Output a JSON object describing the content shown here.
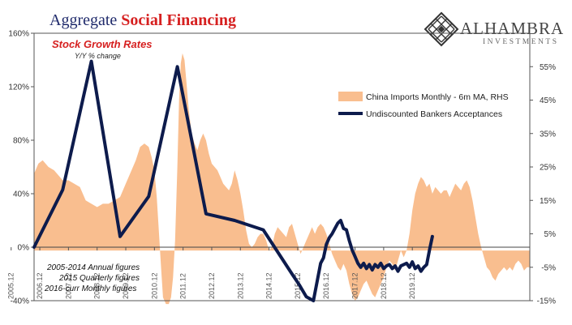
{
  "header": {
    "title_plain": "Aggregate",
    "title_accent": "Social Financing"
  },
  "logo": {
    "name": "ALHAMBRA",
    "sub": "INVESTMENTS",
    "icon": "diamond-lattice-icon"
  },
  "chart_data": {
    "type": "line",
    "subtitle": "Stock Growth Rates",
    "subnote": "Y/Y % change",
    "x_tick_labels": [
      "2005.12",
      "2006.12",
      "2007.12",
      "2008.12",
      "2009.12",
      "2010.12",
      "2011.12",
      "2012.12",
      "2013.12",
      "2014.12",
      "2015.12",
      "2016.12",
      "2017.12",
      "2018.12",
      "2019.12"
    ],
    "y_left": {
      "ticks": [
        "-40%",
        "0%",
        "40%",
        "80%",
        "120%",
        "160%"
      ],
      "range": [
        -40,
        160
      ]
    },
    "y_right": {
      "ticks": [
        "-15%",
        "-5%",
        "5%",
        "15%",
        "25%",
        "35%",
        "45%",
        "55%"
      ],
      "range": [
        -15,
        65
      ]
    },
    "legend_position": "right",
    "notes": [
      "2005-2014 Annual figures",
      "2015 Quarterly figures",
      "2016-curr Monthly figures"
    ],
    "colors": {
      "area": "#f9be8f",
      "line": "#0d1b4c"
    },
    "series": [
      {
        "name": "China Imports Monthly - 6m MA, RHS",
        "kind": "area",
        "axis": "right",
        "points": [
          [
            2006.0,
            23
          ],
          [
            2006.15,
            26
          ],
          [
            2006.3,
            27
          ],
          [
            2006.5,
            25
          ],
          [
            2006.7,
            24
          ],
          [
            2006.9,
            22
          ],
          [
            2007.0,
            21
          ],
          [
            2007.2,
            21
          ],
          [
            2007.4,
            20
          ],
          [
            2007.6,
            19
          ],
          [
            2007.8,
            15
          ],
          [
            2008.0,
            14
          ],
          [
            2008.2,
            13
          ],
          [
            2008.4,
            14
          ],
          [
            2008.6,
            14
          ],
          [
            2008.8,
            15
          ],
          [
            2009.0,
            16
          ],
          [
            2009.2,
            20
          ],
          [
            2009.4,
            24
          ],
          [
            2009.55,
            27
          ],
          [
            2009.7,
            31
          ],
          [
            2009.85,
            32
          ],
          [
            2010.0,
            31
          ],
          [
            2010.1,
            28
          ],
          [
            2010.2,
            24
          ],
          [
            2010.28,
            16
          ],
          [
            2010.36,
            5
          ],
          [
            2010.43,
            -5
          ],
          [
            2010.5,
            -14
          ],
          [
            2010.6,
            -16
          ],
          [
            2010.7,
            -16
          ],
          [
            2010.78,
            -14
          ],
          [
            2010.85,
            -8
          ],
          [
            2010.92,
            3
          ],
          [
            2011.0,
            25
          ],
          [
            2011.06,
            45
          ],
          [
            2011.12,
            56
          ],
          [
            2011.18,
            59
          ],
          [
            2011.25,
            57
          ],
          [
            2011.32,
            50
          ],
          [
            2011.4,
            42
          ],
          [
            2011.5,
            35
          ],
          [
            2011.6,
            32
          ],
          [
            2011.7,
            30
          ],
          [
            2011.8,
            33
          ],
          [
            2011.9,
            35
          ],
          [
            2012.0,
            33
          ],
          [
            2012.1,
            29
          ],
          [
            2012.2,
            26
          ],
          [
            2012.3,
            25
          ],
          [
            2012.4,
            24
          ],
          [
            2012.5,
            22
          ],
          [
            2012.6,
            20
          ],
          [
            2012.7,
            19
          ],
          [
            2012.8,
            18
          ],
          [
            2012.9,
            20
          ],
          [
            2013.0,
            24
          ],
          [
            2013.1,
            21
          ],
          [
            2013.2,
            17
          ],
          [
            2013.3,
            12
          ],
          [
            2013.4,
            6
          ],
          [
            2013.5,
            2
          ],
          [
            2013.6,
            1
          ],
          [
            2013.7,
            2
          ],
          [
            2013.8,
            4
          ],
          [
            2013.9,
            5
          ],
          [
            2014.0,
            5
          ],
          [
            2014.1,
            3
          ],
          [
            2014.2,
            0
          ],
          [
            2014.3,
            1
          ],
          [
            2014.4,
            5
          ],
          [
            2014.5,
            7
          ],
          [
            2014.6,
            6
          ],
          [
            2014.7,
            5
          ],
          [
            2014.8,
            4
          ],
          [
            2014.9,
            7
          ],
          [
            2015.0,
            8
          ],
          [
            2015.1,
            5
          ],
          [
            2015.2,
            2
          ],
          [
            2015.3,
            -1
          ],
          [
            2015.4,
            1
          ],
          [
            2015.5,
            3
          ],
          [
            2015.6,
            5
          ],
          [
            2015.7,
            7
          ],
          [
            2015.8,
            5
          ],
          [
            2015.9,
            7
          ],
          [
            2016.0,
            8
          ],
          [
            2016.1,
            7
          ],
          [
            2016.2,
            5
          ],
          [
            2016.3,
            2
          ],
          [
            2016.4,
            -1
          ],
          [
            2016.5,
            -3
          ],
          [
            2016.6,
            -5
          ],
          [
            2016.7,
            -6
          ],
          [
            2016.8,
            -4
          ],
          [
            2016.9,
            -6
          ],
          [
            2017.0,
            -10
          ],
          [
            2017.1,
            -13
          ],
          [
            2017.2,
            -15
          ],
          [
            2017.3,
            -14
          ],
          [
            2017.4,
            -12
          ],
          [
            2017.5,
            -10
          ],
          [
            2017.6,
            -9
          ],
          [
            2017.7,
            -11
          ],
          [
            2017.8,
            -13
          ],
          [
            2017.9,
            -14
          ],
          [
            2018.0,
            -12
          ],
          [
            2018.1,
            -10
          ],
          [
            2018.2,
            -8
          ],
          [
            2018.3,
            -5
          ],
          [
            2018.4,
            -3
          ],
          [
            2018.5,
            -4
          ],
          [
            2018.6,
            -6
          ],
          [
            2018.7,
            -3
          ],
          [
            2018.8,
            0
          ],
          [
            2018.9,
            -2
          ],
          [
            2019.0,
            0
          ],
          [
            2019.1,
            5
          ],
          [
            2019.2,
            12
          ],
          [
            2019.3,
            17
          ],
          [
            2019.4,
            20
          ],
          [
            2019.5,
            22
          ],
          [
            2019.6,
            21
          ],
          [
            2019.7,
            19
          ],
          [
            2019.8,
            20
          ],
          [
            2019.9,
            17
          ],
          [
            2020.0,
            19
          ],
          [
            2020.1,
            18
          ],
          [
            2020.2,
            17
          ],
          [
            2020.3,
            18
          ],
          [
            2020.4,
            18
          ],
          [
            2020.5,
            16
          ],
          [
            2020.6,
            18
          ],
          [
            2020.7,
            20
          ],
          [
            2020.8,
            19
          ],
          [
            2020.9,
            18
          ],
          [
            2021.0,
            20
          ],
          [
            2021.1,
            21
          ],
          [
            2021.2,
            19
          ],
          [
            2021.3,
            15
          ],
          [
            2021.4,
            10
          ],
          [
            2021.5,
            5
          ],
          [
            2021.6,
            1
          ],
          [
            2021.7,
            -2
          ],
          [
            2021.8,
            -5
          ],
          [
            2021.9,
            -6
          ],
          [
            2022.0,
            -8
          ],
          [
            2022.1,
            -9
          ],
          [
            2022.2,
            -7
          ],
          [
            2022.3,
            -6
          ],
          [
            2022.4,
            -5
          ],
          [
            2022.5,
            -6
          ],
          [
            2022.6,
            -5
          ],
          [
            2022.7,
            -6
          ],
          [
            2022.8,
            -4
          ],
          [
            2022.9,
            -3
          ],
          [
            2023.0,
            -4
          ],
          [
            2023.1,
            -6
          ],
          [
            2023.2,
            -5
          ],
          [
            2023.3,
            -5
          ]
        ]
      },
      {
        "name": "Undiscounted Bankers Acceptances",
        "kind": "line",
        "axis": "left",
        "points": [
          [
            2006.0,
            0
          ],
          [
            2007.0,
            43
          ],
          [
            2008.0,
            139
          ],
          [
            2009.0,
            8
          ],
          [
            2010.0,
            38
          ],
          [
            2011.0,
            135
          ],
          [
            2012.0,
            25
          ],
          [
            2013.0,
            20
          ],
          [
            2014.0,
            13
          ],
          [
            2015.0,
            -20
          ],
          [
            2015.25,
            -28
          ],
          [
            2015.5,
            -37
          ],
          [
            2015.75,
            -40
          ],
          [
            2016.0,
            -12
          ],
          [
            2016.1,
            -8
          ],
          [
            2016.2,
            2
          ],
          [
            2016.3,
            7
          ],
          [
            2016.4,
            10
          ],
          [
            2016.5,
            14
          ],
          [
            2016.6,
            18
          ],
          [
            2016.7,
            20
          ],
          [
            2016.8,
            14
          ],
          [
            2016.9,
            13
          ],
          [
            2017.0,
            5
          ],
          [
            2017.1,
            -2
          ],
          [
            2017.2,
            -7
          ],
          [
            2017.3,
            -12
          ],
          [
            2017.4,
            -15
          ],
          [
            2017.5,
            -12
          ],
          [
            2017.6,
            -16
          ],
          [
            2017.7,
            -13
          ],
          [
            2017.8,
            -17
          ],
          [
            2017.9,
            -13
          ],
          [
            2018.0,
            -15
          ],
          [
            2018.1,
            -12
          ],
          [
            2018.2,
            -16
          ],
          [
            2018.3,
            -14
          ],
          [
            2018.4,
            -13
          ],
          [
            2018.5,
            -16
          ],
          [
            2018.6,
            -14
          ],
          [
            2018.7,
            -18
          ],
          [
            2018.8,
            -14
          ],
          [
            2018.9,
            -13
          ],
          [
            2019.0,
            -12
          ],
          [
            2019.1,
            -15
          ],
          [
            2019.2,
            -11
          ],
          [
            2019.3,
            -16
          ],
          [
            2019.4,
            -14
          ],
          [
            2019.5,
            -18
          ],
          [
            2019.6,
            -15
          ],
          [
            2019.7,
            -13
          ],
          [
            2019.8,
            -2
          ],
          [
            2019.9,
            8
          ]
        ]
      }
    ]
  }
}
